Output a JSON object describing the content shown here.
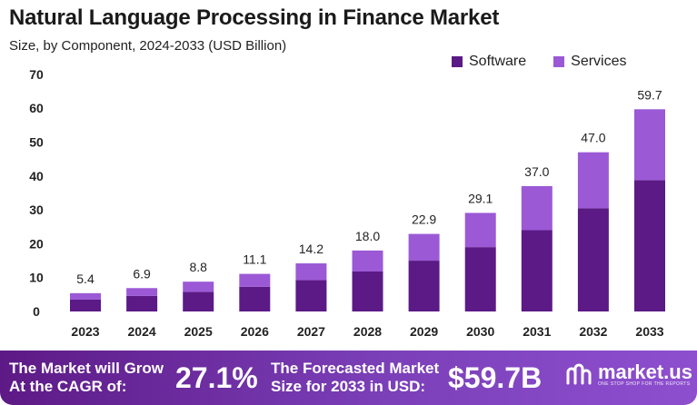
{
  "title": "Natural Language Processing in Finance Market",
  "subtitle": "Size, by Component, 2024-2033 (USD Billion)",
  "colors": {
    "software": "#5b1a86",
    "services": "#9b59d6",
    "footer": "#6a2aa0"
  },
  "chart_data": {
    "type": "bar",
    "stacked": true,
    "categories": [
      "2023",
      "2024",
      "2025",
      "2026",
      "2027",
      "2028",
      "2029",
      "2030",
      "2031",
      "2032",
      "2033"
    ],
    "series": [
      {
        "name": "Software",
        "values": [
          3.5,
          4.6,
          5.8,
          7.3,
          9.3,
          11.8,
          15.0,
          19.0,
          24.0,
          30.5,
          38.8
        ]
      },
      {
        "name": "Services",
        "values": [
          1.9,
          2.3,
          3.0,
          3.8,
          4.9,
          6.2,
          7.9,
          10.1,
          13.0,
          16.5,
          20.9
        ]
      }
    ],
    "totals": [
      "5.4",
      "6.9",
      "8.8",
      "11.1",
      "14.2",
      "18.0",
      "22.9",
      "29.1",
      "37.0",
      "47.0",
      "59.7"
    ],
    "yticks": [
      "0",
      "10",
      "20",
      "30",
      "40",
      "50",
      "60",
      "70"
    ],
    "ylim": [
      0,
      70
    ],
    "grid": false,
    "legend_position": "top-right"
  },
  "footer": {
    "cagr_label_line1": "The Market will Grow",
    "cagr_label_line2": "At the CAGR of:",
    "cagr_value": "27.1%",
    "forecast_label_line1": "The Forecasted Market",
    "forecast_label_line2": "Size for 2033 in USD:",
    "forecast_value": "$59.7B",
    "brand": "market.us",
    "brand_tagline": "ONE STOP SHOP FOR THE REPORTS",
    "brand_icon": "market-us-logo-icon"
  }
}
